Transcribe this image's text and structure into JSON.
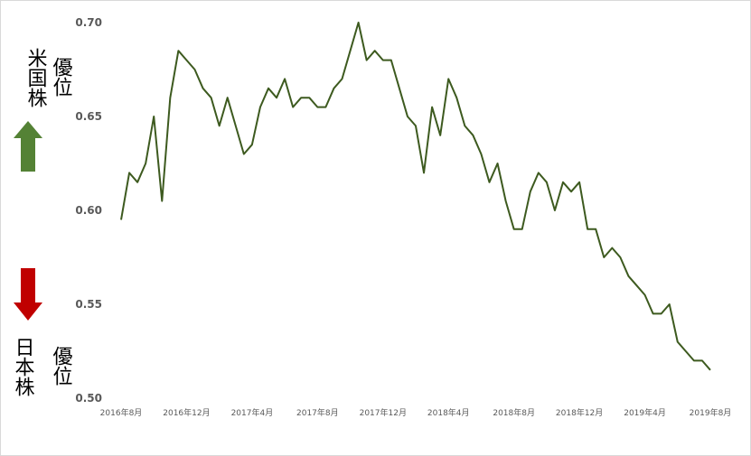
{
  "chart_data": {
    "type": "line",
    "annotations": {
      "us_label": "米国株",
      "us_sub": "優位",
      "jp_label": "日本株",
      "jp_sub": "優位"
    },
    "categories": [
      "2016年8月",
      null,
      null,
      null,
      null,
      null,
      null,
      null,
      "2016年12月",
      null,
      null,
      null,
      null,
      null,
      null,
      null,
      "2017年4月",
      null,
      null,
      null,
      null,
      null,
      null,
      null,
      "2017年8月",
      null,
      null,
      null,
      null,
      null,
      null,
      null,
      "2017年12月",
      null,
      null,
      null,
      null,
      null,
      null,
      null,
      "2018年4月",
      null,
      null,
      null,
      null,
      null,
      null,
      null,
      "2018年8月",
      null,
      null,
      null,
      null,
      null,
      null,
      null,
      "2018年12月",
      null,
      null,
      null,
      null,
      null,
      null,
      null,
      "2019年4月",
      null,
      null,
      null,
      null,
      null,
      null,
      null,
      "2019年8月"
    ],
    "series": [
      {
        "color": "#3d5a1f",
        "values": [
          0.595,
          0.62,
          0.615,
          0.625,
          0.65,
          0.605,
          0.66,
          0.685,
          0.68,
          0.675,
          0.665,
          0.66,
          0.645,
          0.66,
          0.645,
          0.63,
          0.635,
          0.655,
          0.665,
          0.66,
          0.67,
          0.655,
          0.66,
          0.66,
          0.655,
          0.655,
          0.665,
          0.67,
          0.685,
          0.7,
          0.68,
          0.685,
          0.68,
          0.68,
          0.665,
          0.65,
          0.645,
          0.62,
          0.655,
          0.64,
          0.67,
          0.66,
          0.645,
          0.64,
          0.63,
          0.615,
          0.625,
          0.605,
          0.59,
          0.59,
          0.61,
          0.62,
          0.615,
          0.6,
          0.615,
          0.61,
          0.615,
          0.59,
          0.59,
          0.575,
          0.58,
          0.575,
          0.565,
          0.56,
          0.555,
          0.545,
          0.545,
          0.55,
          0.53,
          0.525,
          0.52,
          0.52,
          0.515
        ]
      }
    ],
    "ylim": [
      0.5,
      0.7
    ],
    "yticks": [
      {
        "value": 0.5,
        "label": "0.50"
      },
      0.55,
      {
        "value": 0.6,
        "label": "0.60"
      },
      0.65,
      {
        "value": 0.7,
        "label": "0.70"
      }
    ],
    "grid": false
  }
}
